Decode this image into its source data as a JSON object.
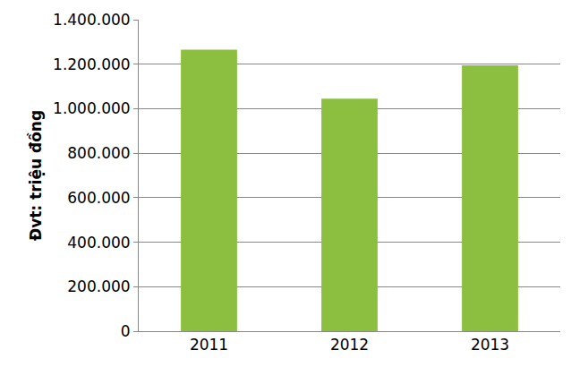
{
  "chart_data": {
    "type": "bar",
    "y_label": "Đvt: triệu đồng",
    "categories": [
      "2011",
      "2012",
      "2013"
    ],
    "values": [
      1265000,
      1045000,
      1195000
    ],
    "color": "#8cbf3f",
    "ylim": [
      0,
      1400000
    ],
    "yticks": [
      0,
      {
        "value": 200000,
        "label": "200.000"
      },
      {
        "value": 400000,
        "label": "400.000"
      },
      {
        "value": 600000,
        "label": "600.000"
      },
      {
        "value": 800000,
        "label": "800.000"
      },
      {
        "value": 1000000,
        "label": "1.000.000"
      },
      {
        "value": 1200000,
        "label": "1.200.000"
      },
      {
        "value": 1400000,
        "label": "1.400.000"
      }
    ],
    "grid": true
  }
}
